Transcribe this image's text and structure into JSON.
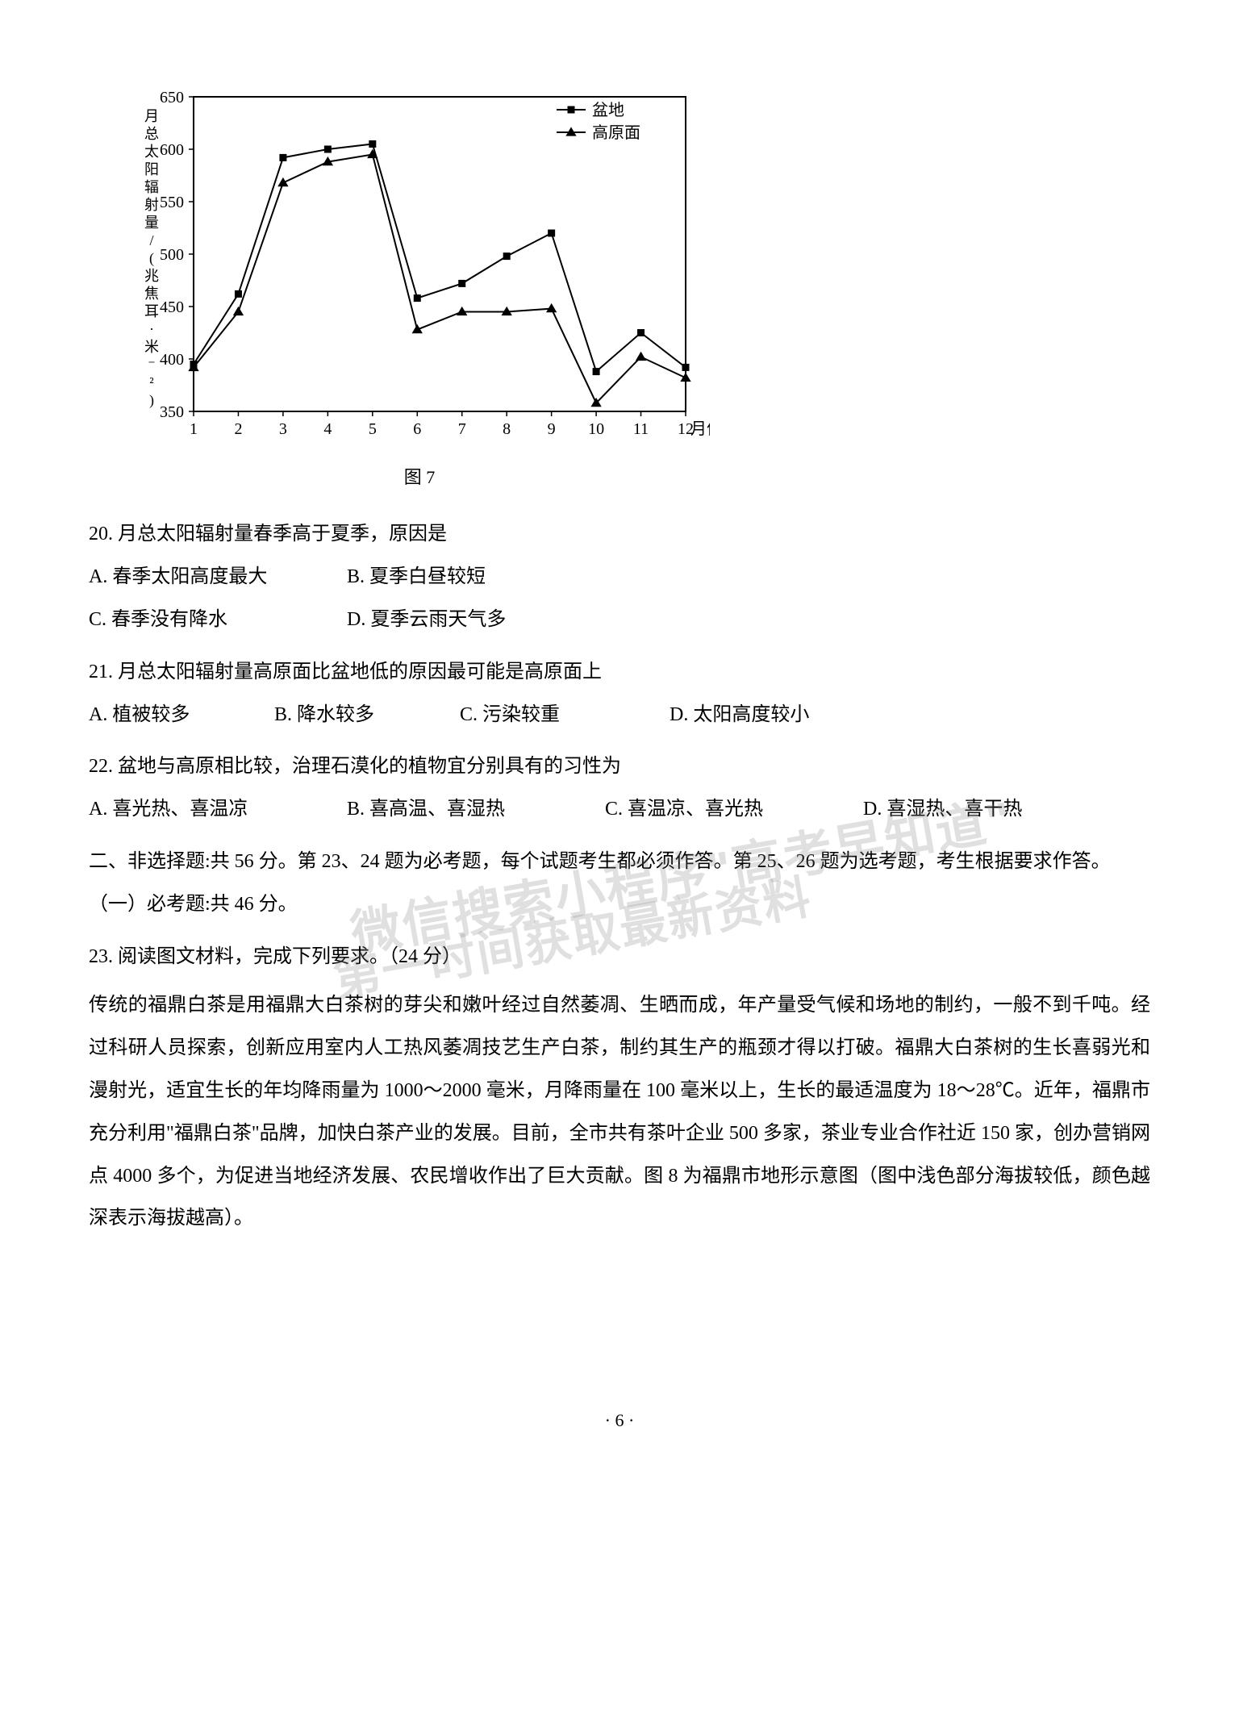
{
  "chart": {
    "type": "line",
    "caption": "图 7",
    "xlabel": "月份",
    "ylabel": "月总太阳辐射量/(兆焦耳·米⁻²)",
    "xlim": [
      1,
      12
    ],
    "ylim": [
      350,
      650
    ],
    "xtick_step": 1,
    "ytick_step": 50,
    "xticks": [
      1,
      2,
      3,
      4,
      5,
      6,
      7,
      8,
      9,
      10,
      11,
      12
    ],
    "yticks": [
      350,
      400,
      450,
      500,
      550,
      600,
      650
    ],
    "background_color": "#ffffff",
    "grid_color": "none",
    "axis_color": "#000000",
    "axis_width": 2,
    "font_size": 20,
    "series": [
      {
        "name": "盆地",
        "marker": "square",
        "marker_size": 9,
        "line_width": 2,
        "color": "#000000",
        "x": [
          1,
          2,
          3,
          4,
          5,
          6,
          7,
          8,
          9,
          10,
          11,
          12
        ],
        "y": [
          395,
          462,
          592,
          600,
          605,
          458,
          472,
          498,
          520,
          388,
          425,
          392
        ]
      },
      {
        "name": "高原面",
        "marker": "triangle",
        "marker_size": 10,
        "line_width": 2,
        "color": "#000000",
        "x": [
          1,
          2,
          3,
          4,
          5,
          6,
          7,
          8,
          9,
          10,
          11,
          12
        ],
        "y": [
          392,
          445,
          568,
          588,
          595,
          428,
          445,
          445,
          448,
          358,
          402,
          382
        ]
      }
    ],
    "legend": {
      "position": "top-right",
      "items": [
        "盆地",
        "高原面"
      ]
    }
  },
  "q20": {
    "stem": "20. 月总太阳辐射量春季高于夏季，原因是",
    "A": "A. 春季太阳高度最大",
    "B": "B. 夏季白昼较短",
    "C": "C. 春季没有降水",
    "D": "D. 夏季云雨天气多"
  },
  "q21": {
    "stem": "21. 月总太阳辐射量高原面比盆地低的原因最可能是高原面上",
    "A": "A. 植被较多",
    "B": "B. 降水较多",
    "C": "C. 污染较重",
    "D": "D. 太阳高度较小"
  },
  "q22": {
    "stem": "22. 盆地与高原相比较，治理石漠化的植物宜分别具有的习性为",
    "A": "A. 喜光热、喜温凉",
    "B": "B. 喜高温、喜湿热",
    "C": "C. 喜温凉、喜光热",
    "D": "D. 喜湿热、喜干热"
  },
  "section2": {
    "heading": "二、非选择题:共 56 分。第 23、24 题为必考题，每个试题考生都必须作答。第 25、26 题为选考题，考生根据要求作答。",
    "sub1": "（一）必考题:共 46 分。"
  },
  "q23": {
    "stem": "23. 阅读图文材料，完成下列要求。（24 分）",
    "passage": "传统的福鼎白茶是用福鼎大白茶树的芽尖和嫩叶经过自然萎凋、生晒而成，年产量受气候和场地的制约，一般不到千吨。经过科研人员探索，创新应用室内人工热风萎凋技艺生产白茶，制约其生产的瓶颈才得以打破。福鼎大白茶树的生长喜弱光和漫射光，适宜生长的年均降雨量为 1000～2000 毫米，月降雨量在 100 毫米以上，生长的最适温度为 18～28℃。近年，福鼎市充分利用\"福鼎白茶\"品牌，加快白茶产业的发展。目前，全市共有茶叶企业 500 多家，茶业专业合作社近 150 家，创办营销网点 4000 多个，为促进当地经济发展、农民增收作出了巨大贡献。图 8 为福鼎市地形示意图（图中浅色部分海拔较低，颜色越深表示海拔越高）。"
  },
  "watermark": {
    "line1": "微信搜索小程序\"高考早知道\"",
    "line2": "第一时间获取最新资料"
  },
  "page_number": "· 6 ·"
}
